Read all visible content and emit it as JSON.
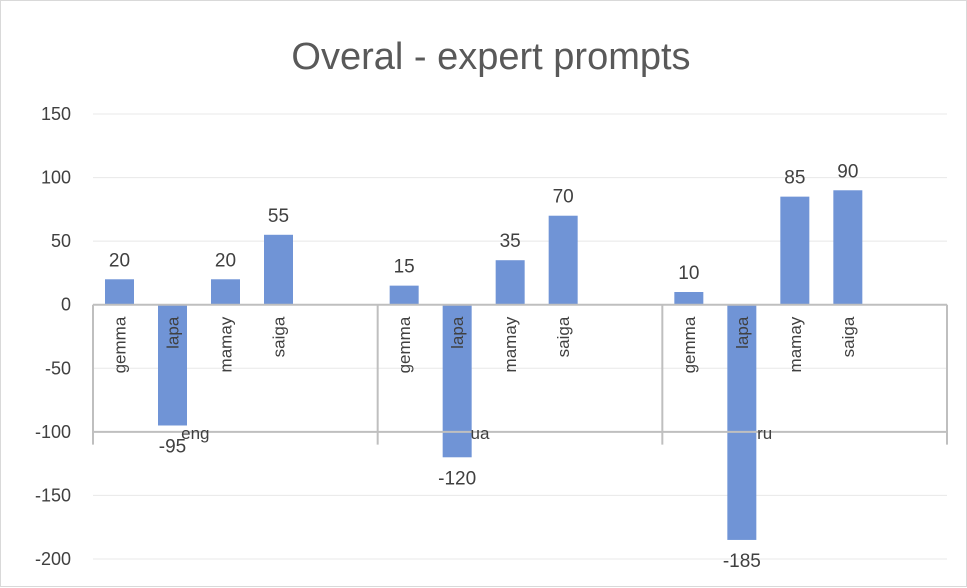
{
  "chart_data": {
    "type": "bar",
    "title": "Overal - expert prompts",
    "groups": [
      "eng",
      "ua",
      "ru"
    ],
    "categories": [
      "gemma",
      "lapa",
      "mamay",
      "saiga"
    ],
    "series": [
      {
        "group": "eng",
        "values": [
          20,
          -95,
          20,
          55
        ]
      },
      {
        "group": "ua",
        "values": [
          15,
          -120,
          35,
          70
        ]
      },
      {
        "group": "ru",
        "values": [
          10,
          -185,
          85,
          90
        ]
      }
    ],
    "ylim": [
      -200,
      150
    ],
    "yticks": [
      150,
      100,
      50,
      0,
      -50,
      -100,
      -150,
      -200
    ],
    "grid": true,
    "data_labels": true,
    "bar_color": "#7094d6",
    "grid_color": "#e8e8e8",
    "axis_color": "#bfbfbf"
  }
}
